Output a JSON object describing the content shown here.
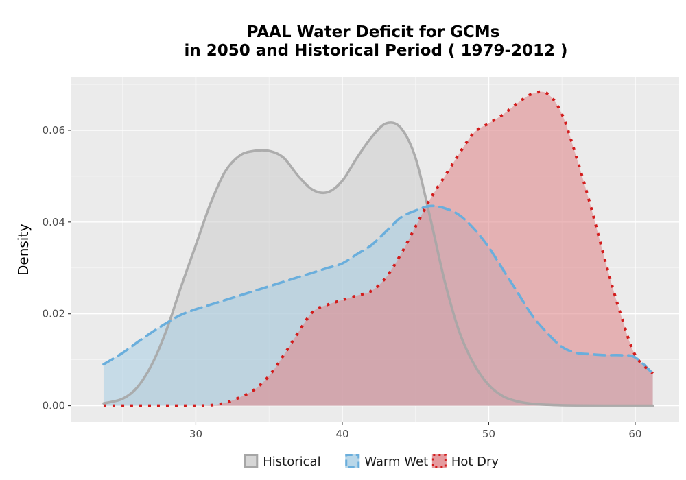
{
  "chart_data": {
    "type": "area",
    "title": "PAAL  Water Deficit for GCMs",
    "subtitle": "in 2050 and Historical Period ( 1979-2012 )",
    "xlabel": "",
    "ylabel": "Density",
    "xlim": [
      21.5,
      63
    ],
    "ylim": [
      -0.0035,
      0.0715
    ],
    "x_ticks": [
      30,
      40,
      50,
      60
    ],
    "y_ticks": [
      0.0,
      0.02,
      0.04,
      0.06
    ],
    "y_tick_labels": [
      "0.00",
      "0.02",
      "0.04",
      "0.06"
    ],
    "grid": true,
    "legend_position": "bottom",
    "series": [
      {
        "name": "Historical",
        "line_color": "#a6a6a6",
        "fill_color": "#cccccc",
        "fill_opacity": 0.55,
        "line_style": "solid",
        "x": [
          23.7,
          25,
          26,
          27,
          28,
          29,
          30,
          31,
          32,
          33,
          34,
          35,
          36,
          37,
          38,
          39,
          40,
          41,
          42,
          43,
          44,
          45,
          46,
          47,
          48,
          49,
          50,
          51,
          52,
          53,
          54,
          55,
          56,
          58,
          61.2
        ],
        "y": [
          0.0005,
          0.0015,
          0.004,
          0.009,
          0.0165,
          0.026,
          0.035,
          0.044,
          0.051,
          0.0545,
          0.0555,
          0.0555,
          0.054,
          0.05,
          0.047,
          0.0465,
          0.049,
          0.054,
          0.0585,
          0.0615,
          0.0605,
          0.054,
          0.041,
          0.027,
          0.016,
          0.009,
          0.0045,
          0.002,
          0.0009,
          0.0004,
          0.0002,
          0.0001,
          5e-05,
          0.0,
          0.0
        ]
      },
      {
        "name": "Warm Wet",
        "line_color": "#6aaedc",
        "fill_color": "#a8cde4",
        "fill_opacity": 0.55,
        "line_style": "dashed",
        "x": [
          23.7,
          25,
          26,
          27,
          28,
          29,
          30,
          31,
          32,
          33,
          34,
          35,
          36,
          37,
          38,
          39,
          40,
          41,
          42,
          43,
          44,
          45,
          46,
          47,
          48,
          49,
          50,
          51,
          52,
          53,
          54,
          55,
          56,
          57,
          58,
          59,
          60,
          61.2
        ],
        "y": [
          0.009,
          0.0115,
          0.0138,
          0.016,
          0.018,
          0.0198,
          0.021,
          0.022,
          0.023,
          0.024,
          0.025,
          0.026,
          0.027,
          0.028,
          0.029,
          0.03,
          0.031,
          0.033,
          0.035,
          0.038,
          0.041,
          0.0425,
          0.0435,
          0.043,
          0.0415,
          0.0385,
          0.0345,
          0.0295,
          0.0245,
          0.0195,
          0.0158,
          0.0128,
          0.0115,
          0.0112,
          0.011,
          0.011,
          0.0105,
          0.007
        ]
      },
      {
        "name": "Hot Dry",
        "line_color": "#d21c1c",
        "fill_color": "#e08a8e",
        "fill_opacity": 0.6,
        "line_style": "dotted",
        "x": [
          23.7,
          25,
          26,
          27,
          28,
          29,
          30,
          31,
          32,
          33,
          34,
          35,
          36,
          37,
          38,
          39,
          40,
          41,
          42,
          43,
          44,
          45,
          46,
          47,
          48,
          49,
          50,
          51,
          52,
          53,
          54,
          55,
          56,
          57,
          58,
          59,
          60,
          61.2
        ],
        "y": [
          0.0,
          0.0,
          0.0,
          0.0,
          0.0,
          0.0,
          0.0,
          0.0001,
          0.0006,
          0.0018,
          0.0035,
          0.0065,
          0.011,
          0.016,
          0.0205,
          0.022,
          0.023,
          0.024,
          0.025,
          0.028,
          0.033,
          0.039,
          0.045,
          0.05,
          0.055,
          0.0595,
          0.0615,
          0.0635,
          0.066,
          0.068,
          0.068,
          0.0635,
          0.054,
          0.043,
          0.031,
          0.02,
          0.011,
          0.007
        ]
      }
    ]
  }
}
